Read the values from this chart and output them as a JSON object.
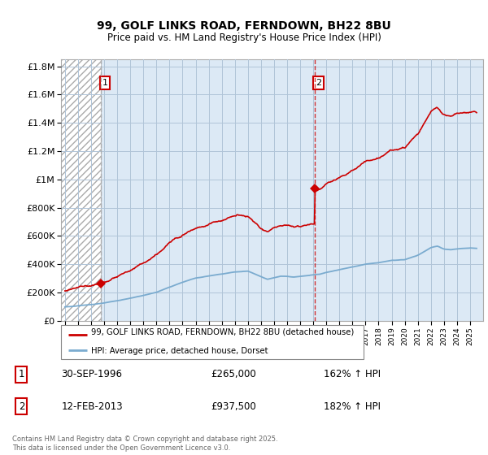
{
  "title": "99, GOLF LINKS ROAD, FERNDOWN, BH22 8BU",
  "subtitle": "Price paid vs. HM Land Registry's House Price Index (HPI)",
  "legend_line1": "99, GOLF LINKS ROAD, FERNDOWN, BH22 8BU (detached house)",
  "legend_line2": "HPI: Average price, detached house, Dorset",
  "annotation1_num": "1",
  "annotation1_date": "30-SEP-1996",
  "annotation1_price": "£265,000",
  "annotation1_hpi": "162% ↑ HPI",
  "annotation2_num": "2",
  "annotation2_date": "12-FEB-2013",
  "annotation2_price": "£937,500",
  "annotation2_hpi": "182% ↑ HPI",
  "footer": "Contains HM Land Registry data © Crown copyright and database right 2025.\nThis data is licensed under the Open Government Licence v3.0.",
  "sale1_year": 1996.75,
  "sale1_price": 265000,
  "sale2_year": 2013.1,
  "sale2_price": 937500,
  "red_color": "#cc0000",
  "blue_color": "#7aabcf",
  "background_color": "#dce9f5",
  "grid_color": "#b0c4d8",
  "ylim_max": 1850000,
  "ylim_min": 0
}
